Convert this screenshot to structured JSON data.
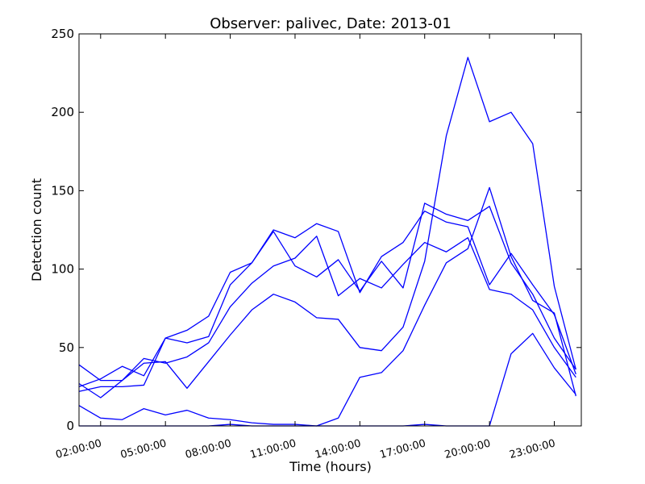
{
  "chart_data": {
    "type": "line",
    "title": "Observer: palivec, Date: 2013-01",
    "xlabel": "Time (hours)",
    "ylabel": "Detection count",
    "xlim": [
      1.0,
      24.25
    ],
    "ylim": [
      0,
      250
    ],
    "xticks": [
      {
        "value": 2,
        "label": "02:00:00"
      },
      {
        "value": 5,
        "label": "05:00:00"
      },
      {
        "value": 8,
        "label": "08:00:00"
      },
      {
        "value": 11,
        "label": "11:00:00"
      },
      {
        "value": 14,
        "label": "14:00:00"
      },
      {
        "value": 17,
        "label": "17:00:00"
      },
      {
        "value": 20,
        "label": "20:00:00"
      },
      {
        "value": 23,
        "label": "23:00:00"
      }
    ],
    "yticks": [
      0,
      50,
      100,
      150,
      200,
      250
    ],
    "grid": false,
    "legend": "none",
    "line_color": "#0000ff",
    "x": [
      1,
      2,
      3,
      4,
      5,
      6,
      7,
      8,
      9,
      10,
      11,
      12,
      13,
      14,
      15,
      16,
      17,
      18,
      19,
      20,
      21,
      22,
      23,
      24
    ],
    "series": [
      {
        "values": [
          22,
          25,
          25,
          26,
          56,
          53,
          57,
          90,
          104,
          125,
          120,
          129,
          124,
          85,
          108,
          117,
          137,
          130,
          127,
          90,
          110,
          90,
          71,
          33
        ]
      },
      {
        "values": [
          39,
          29,
          29,
          40,
          41,
          24,
          41,
          58,
          74,
          84,
          79,
          69,
          68,
          50,
          48,
          63,
          105,
          185,
          235,
          194,
          200,
          180,
          89,
          36
        ]
      },
      {
        "values": [
          25,
          30,
          38,
          32,
          56,
          61,
          70,
          98,
          104,
          124,
          102,
          95,
          106,
          86,
          105,
          88,
          142,
          135,
          131,
          140,
          104,
          84,
          56,
          36
        ]
      },
      {
        "values": [
          27,
          18,
          29,
          43,
          40,
          44,
          53,
          76,
          91,
          102,
          107,
          121,
          83,
          94,
          88,
          103,
          117,
          111,
          120,
          87,
          84,
          74,
          50,
          31
        ]
      },
      {
        "values": [
          13,
          5,
          4,
          11,
          7,
          10,
          5,
          4,
          2,
          1,
          1,
          0,
          5,
          31,
          34,
          48,
          77,
          104,
          113,
          152,
          108,
          80,
          72,
          19
        ]
      },
      {
        "values": [
          0,
          0,
          0,
          0,
          0,
          0,
          0,
          1,
          0,
          0,
          0,
          0,
          0,
          0,
          0,
          0,
          1,
          0,
          0,
          0,
          46,
          59,
          37,
          20
        ]
      }
    ]
  }
}
